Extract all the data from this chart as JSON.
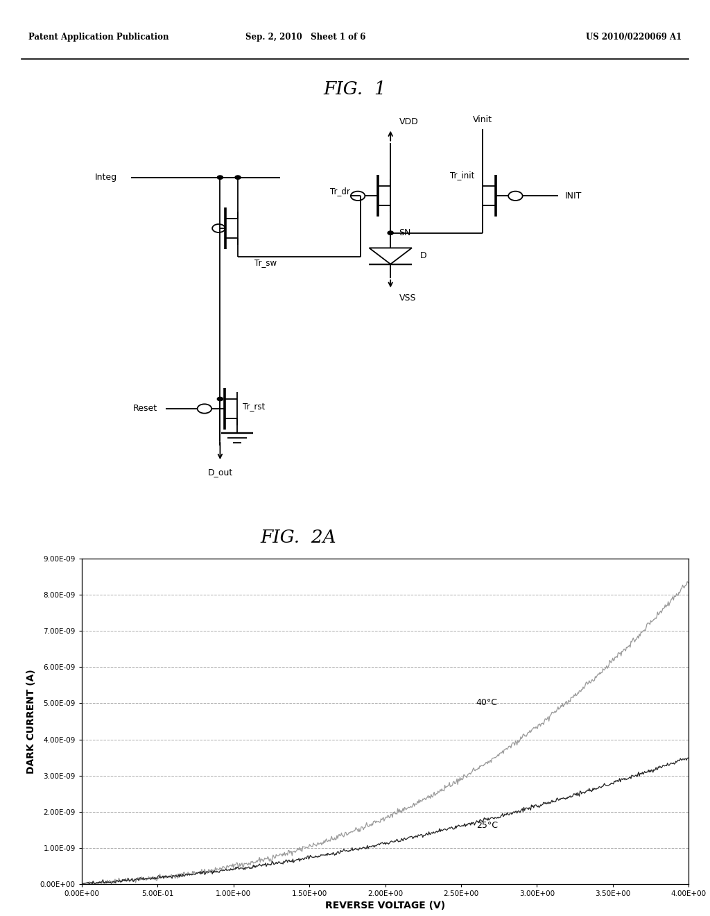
{
  "header_left": "Patent Application Publication",
  "header_center": "Sep. 2, 2010   Sheet 1 of 6",
  "header_right": "US 2010/0220069 A1",
  "fig1_title": "FIG.  1",
  "fig2a_title": "FIG.  2A",
  "graph": {
    "xlabel": "REVERSE VOLTAGE (V)",
    "ylabel": "DARK CURRENT (A)",
    "xlim": [
      0.0,
      4.0
    ],
    "ylim": [
      0.0,
      9e-09
    ],
    "xtick_labels": [
      "0.00E+00",
      "5.00E-01",
      "1.00E+00",
      "1.50E+00",
      "2.00E+00",
      "2.50E+00",
      "3.00E+00",
      "3.50E+00",
      "4.00E+00"
    ],
    "ytick_labels": [
      "0.00E+00",
      "1.00E-09",
      "2.00E-09",
      "3.00E-09",
      "4.00E-09",
      "5.00E-09",
      "6.00E-09",
      "7.00E-09",
      "8.00E-09",
      "9.00E-09"
    ],
    "label_25": "25°C",
    "label_40": "40°C",
    "line_color_25": "#222222",
    "line_color_40": "#999999",
    "background": "#ffffff",
    "grid_color": "#aaaaaa",
    "grid_style": "--"
  }
}
